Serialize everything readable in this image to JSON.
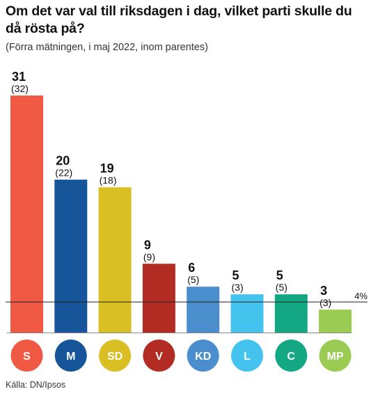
{
  "title": "Om det var val till riksdagen i dag, vilket parti skulle du då rösta på?",
  "subtitle": "(Förra mätningen, i maj 2022, inom parentes)",
  "source": "Källa: DN/Ipsos",
  "chart_data": {
    "type": "bar",
    "categories": [
      "S",
      "M",
      "SD",
      "V",
      "KD",
      "L",
      "C",
      "MP"
    ],
    "values": [
      31,
      20,
      19,
      9,
      6,
      5,
      5,
      3
    ],
    "previous_labels": [
      "(32)",
      "(22)",
      "(18)",
      "(9)",
      "(5)",
      "(3)",
      "(5)",
      "(3)"
    ],
    "colors": [
      "#f05a45",
      "#17559a",
      "#d9bf24",
      "#b22c24",
      "#4a8ecd",
      "#45c3ef",
      "#14a783",
      "#9acb52"
    ],
    "threshold": {
      "value": 4,
      "label": "4%"
    },
    "ylim": [
      0,
      31
    ]
  }
}
